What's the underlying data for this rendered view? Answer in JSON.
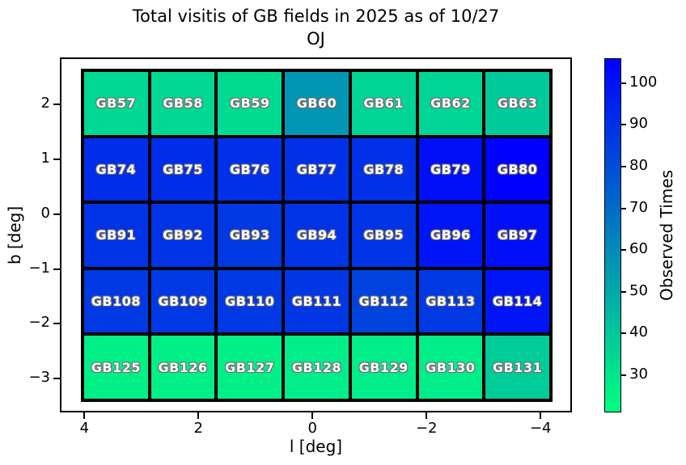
{
  "title": {
    "line1": "Total visitis of GB fields in 2025 as of 10/27",
    "line2": "OJ"
  },
  "axes": {
    "xlabel": "l [deg]",
    "ylabel": "b [deg]",
    "x_ticks": [
      {
        "value": 4,
        "label": "4"
      },
      {
        "value": 2,
        "label": "2"
      },
      {
        "value": 0,
        "label": "0"
      },
      {
        "value": -2,
        "label": "−2"
      },
      {
        "value": -4,
        "label": "−4"
      }
    ],
    "y_ticks": [
      {
        "value": 2,
        "label": "2"
      },
      {
        "value": 1,
        "label": "1"
      },
      {
        "value": 0,
        "label": "0"
      },
      {
        "value": -1,
        "label": "−1"
      },
      {
        "value": -2,
        "label": "−2"
      },
      {
        "value": -3,
        "label": "−3"
      }
    ]
  },
  "colorbar": {
    "label": "Observed Times",
    "vmin": 21,
    "vmax": 106,
    "color_low": "#00ff80",
    "color_high": "#0000ff",
    "ticks": [
      {
        "value": 30,
        "label": "30"
      },
      {
        "value": 40,
        "label": "40"
      },
      {
        "value": 50,
        "label": "50"
      },
      {
        "value": 60,
        "label": "60"
      },
      {
        "value": 70,
        "label": "70"
      },
      {
        "value": 80,
        "label": "80"
      },
      {
        "value": 90,
        "label": "90"
      },
      {
        "value": 100,
        "label": "100"
      }
    ]
  },
  "chart_data": {
    "type": "heatmap",
    "title": "Total visitis of GB fields in 2025 as of 10/27 OJ",
    "xlabel": "l [deg]",
    "ylabel": "b [deg]",
    "colorbar_label": "Observed Times",
    "colormap": "winter_r",
    "vmin": 21,
    "vmax": 106,
    "xlim": [
      4.43,
      -4.55
    ],
    "ylim": [
      2.86,
      -3.62
    ],
    "grid_on": false,
    "cells": [
      [
        {
          "label": "GB57",
          "value": 34
        },
        {
          "label": "GB58",
          "value": 34
        },
        {
          "label": "GB59",
          "value": 33
        },
        {
          "label": "GB60",
          "value": 56
        },
        {
          "label": "GB61",
          "value": 35
        },
        {
          "label": "GB62",
          "value": 35
        },
        {
          "label": "GB63",
          "value": 39
        }
      ],
      [
        {
          "label": "GB74",
          "value": 91
        },
        {
          "label": "GB75",
          "value": 91
        },
        {
          "label": "GB76",
          "value": 90
        },
        {
          "label": "GB77",
          "value": 90
        },
        {
          "label": "GB78",
          "value": 90
        },
        {
          "label": "GB79",
          "value": 101
        },
        {
          "label": "GB80",
          "value": 106
        }
      ],
      [
        {
          "label": "GB91",
          "value": 89
        },
        {
          "label": "GB92",
          "value": 89
        },
        {
          "label": "GB93",
          "value": 87
        },
        {
          "label": "GB94",
          "value": 89
        },
        {
          "label": "GB95",
          "value": 89
        },
        {
          "label": "GB96",
          "value": 99
        },
        {
          "label": "GB97",
          "value": 101
        }
      ],
      [
        {
          "label": "GB108",
          "value": 87
        },
        {
          "label": "GB109",
          "value": 87
        },
        {
          "label": "GB110",
          "value": 87
        },
        {
          "label": "GB111",
          "value": 88
        },
        {
          "label": "GB112",
          "value": 84
        },
        {
          "label": "GB113",
          "value": 87
        },
        {
          "label": "GB114",
          "value": 99
        }
      ],
      [
        {
          "label": "GB125",
          "value": 26
        },
        {
          "label": "GB126",
          "value": 26
        },
        {
          "label": "GB127",
          "value": 26
        },
        {
          "label": "GB128",
          "value": 27
        },
        {
          "label": "GB129",
          "value": 27
        },
        {
          "label": "GB130",
          "value": 27
        },
        {
          "label": "GB131",
          "value": 38
        }
      ]
    ]
  }
}
